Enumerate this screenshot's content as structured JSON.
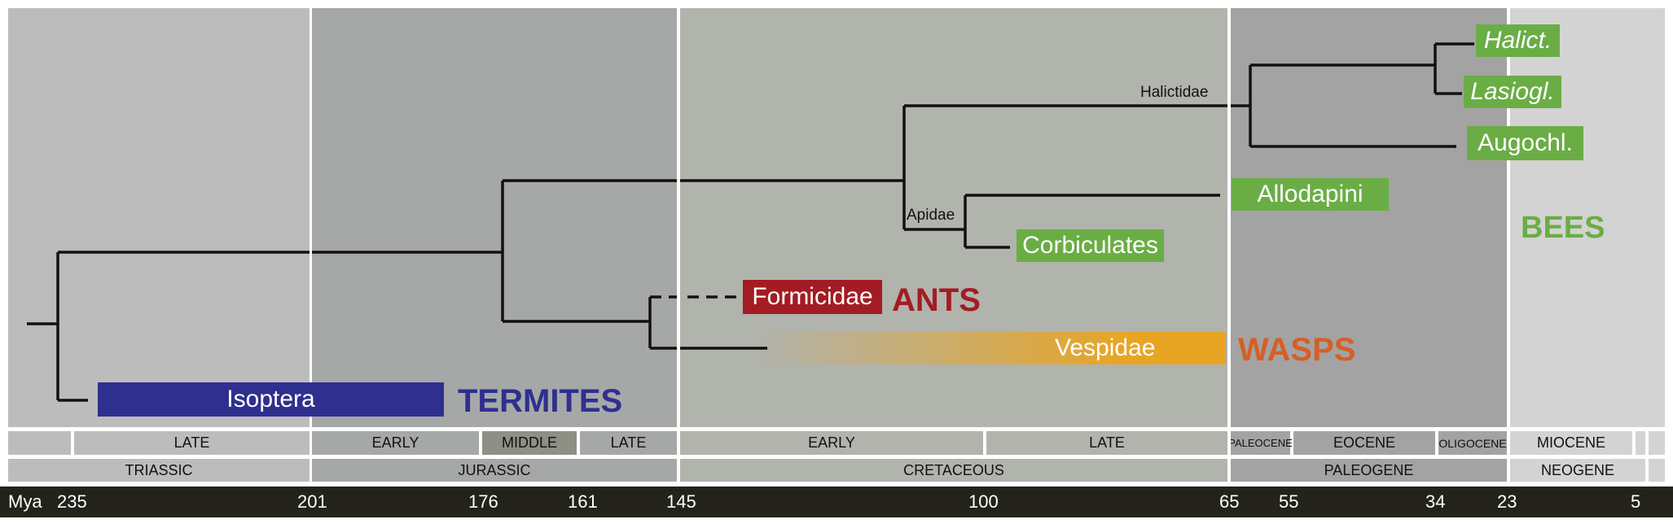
{
  "periods": [
    {
      "name": "TRIASSIC",
      "color": "#bcbcbc"
    },
    {
      "name": "JURASSIC",
      "color": "#a6a8a8"
    },
    {
      "name": "CRETACEOUS",
      "color": "#b1b3ad"
    },
    {
      "name": "PALEOGENE",
      "color": "#a3a3a3"
    },
    {
      "name": "NEOGENE",
      "color": "#d3d3d3"
    }
  ],
  "epochs": [
    "LATE",
    "EARLY",
    "MIDDLE",
    "LATE",
    "EARLY",
    "LATE",
    "PALEOCENE",
    "EOCENE",
    "OLIGOCENE",
    "MIOCENE"
  ],
  "mya": {
    "label": "Mya",
    "ticks": [
      "235",
      "201",
      "176",
      "161",
      "145",
      "100",
      "65",
      "55",
      "34",
      "23",
      "5"
    ]
  },
  "nodes": {
    "halictidae": "Halictidae",
    "apidae": "Apidae"
  },
  "taxa": {
    "halict": "Halict.",
    "lasiogl": "Lasiogl.",
    "augochl": "Augochl.",
    "allodapini": "Allodapini",
    "corbiculates": "Corbiculates",
    "formicidae": "Formicidae",
    "vespidae": "Vespidae",
    "isoptera": "Isoptera"
  },
  "groups": {
    "bees": "BEES",
    "ants": "ANTS",
    "wasps": "WASPS",
    "termites": "TERMITES"
  },
  "colors": {
    "bee_green": "#6aad45",
    "ant_red": "#a31c23",
    "wasp_orange": "#e8a523",
    "wasp_text": "#d55f25",
    "termite_blue": "#2f2f8f",
    "timeline": "#23231b"
  }
}
